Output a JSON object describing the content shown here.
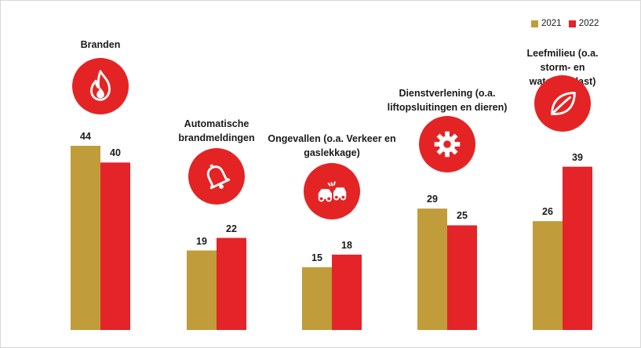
{
  "legend": {
    "series_a": "2021",
    "series_b": "2022"
  },
  "colors": {
    "series_a": "#c09c3a",
    "series_b": "#e42429",
    "icon_bg": "#e42424"
  },
  "categories": [
    {
      "label": "Branden",
      "icon": "fire-icon"
    },
    {
      "label": "Automatische\nbrandmeldingen",
      "icon": "bell-icon"
    },
    {
      "label": "Ongevallen (o.a. Verkeer en\ngaslekkage)",
      "icon": "car-crash-icon"
    },
    {
      "label": "Dienstverlening (o.a.\nliftopsluitingen en dieren)",
      "icon": "gear-icon"
    },
    {
      "label": "Leefmilieu (o.a. storm- en\nwateroverlast)",
      "icon": "leaf-icon"
    }
  ],
  "chart_data": {
    "type": "bar",
    "categories": [
      "Branden",
      "Automatische brandmeldingen",
      "Ongevallen (o.a. Verkeer en gaslekkage)",
      "Dienstverlening (o.a. liftopsluitingen en dieren)",
      "Leefmilieu (o.a. storm- en wateroverlast)"
    ],
    "series": [
      {
        "name": "2021",
        "values": [
          44,
          19,
          15,
          29,
          26
        ]
      },
      {
        "name": "2022",
        "values": [
          40,
          22,
          18,
          25,
          39
        ]
      }
    ],
    "title": "",
    "xlabel": "",
    "ylabel": "",
    "ylim": [
      0,
      44
    ],
    "legend": "top-right",
    "grid": false
  }
}
